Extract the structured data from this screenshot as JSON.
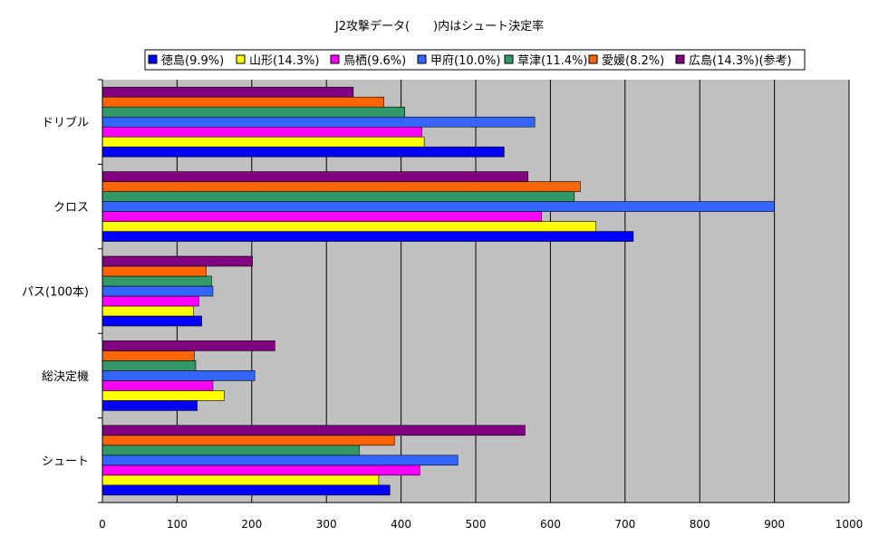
{
  "chart_data": {
    "type": "bar",
    "orientation": "horizontal",
    "title": "J2攻撃データ(　　)内はシュート決定率",
    "categories": [
      "ドリブル",
      "クロス",
      "パス(100本)",
      "総決定機",
      "シュート"
    ],
    "series": [
      {
        "name": "徳島(9.9%)",
        "color": "#0000ff",
        "values": [
          538,
          711,
          133,
          127,
          385
        ]
      },
      {
        "name": "山形(14.3%)",
        "color": "#ffff00",
        "values": [
          431,
          661,
          122,
          163,
          370
        ]
      },
      {
        "name": "鳥栖(9.6%)",
        "color": "#ff00ff",
        "values": [
          428,
          588,
          129,
          148,
          425
        ]
      },
      {
        "name": "甲府(10.0%)",
        "color": "#3366ff",
        "values": [
          579,
          900,
          148,
          204,
          476
        ]
      },
      {
        "name": "草津(11.4%)",
        "color": "#339966",
        "values": [
          405,
          632,
          146,
          125,
          344
        ]
      },
      {
        "name": "愛媛(8.2%)",
        "color": "#ff6600",
        "values": [
          377,
          640,
          139,
          123,
          391
        ]
      },
      {
        "name": "広島(14.3%)(参考)",
        "color": "#800080",
        "values": [
          336,
          570,
          201,
          231,
          566
        ]
      }
    ],
    "xlim": [
      0,
      1000
    ],
    "xticks": [
      "0",
      "100",
      "200",
      "300",
      "400",
      "500",
      "600",
      "700",
      "800",
      "900",
      "1000"
    ],
    "grid": true,
    "legend_position": "top",
    "plot_background": "#c0c0c0"
  }
}
